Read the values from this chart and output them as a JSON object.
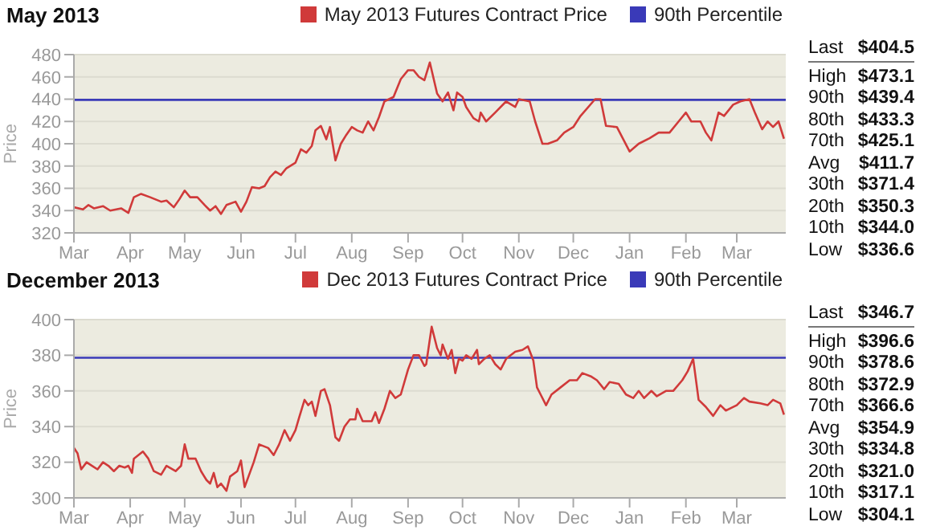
{
  "chart_data": [
    {
      "type": "line",
      "title": "May 2013",
      "ylabel": "Price",
      "legend": "top right",
      "grid": "y",
      "marker": "none",
      "line_style": "solid",
      "xlim": [
        "2012-03-01",
        "2013-03-28"
      ],
      "ylim": [
        320,
        480
      ],
      "yticks": [
        320,
        340,
        360,
        380,
        400,
        420,
        440,
        460,
        480
      ],
      "xticks": [
        {
          "value": "2012-03-01",
          "label": "Mar"
        },
        {
          "value": "2012-04-01",
          "label": "Apr"
        },
        {
          "value": "2012-05-01",
          "label": "May"
        },
        {
          "value": "2012-06-01",
          "label": "Jun"
        },
        {
          "value": "2012-07-01",
          "label": "Jul"
        },
        {
          "value": "2012-08-01",
          "label": "Aug"
        },
        {
          "value": "2012-09-01",
          "label": "Sep"
        },
        {
          "value": "2012-10-01",
          "label": "Oct"
        },
        {
          "value": "2012-11-01",
          "label": "Nov"
        },
        {
          "value": "2012-12-01",
          "label": "Dec"
        },
        {
          "value": "2013-01-01",
          "label": "Jan"
        },
        {
          "value": "2013-02-01",
          "label": "Feb"
        },
        {
          "value": "2013-03-01",
          "label": "Mar"
        }
      ],
      "series": [
        {
          "name": "May 2013 Futures Contract Price",
          "color": "#d03a3a",
          "x": [
            "2012-03-01",
            "2012-03-06",
            "2012-03-09",
            "2012-03-12",
            "2012-03-17",
            "2012-03-21",
            "2012-03-27",
            "2012-03-31",
            "2012-04-03",
            "2012-04-07",
            "2012-04-12",
            "2012-04-18",
            "2012-04-21",
            "2012-04-25",
            "2012-04-28",
            "2012-05-01",
            "2012-05-04",
            "2012-05-08",
            "2012-05-12",
            "2012-05-15",
            "2012-05-18",
            "2012-05-21",
            "2012-05-24",
            "2012-05-29",
            "2012-06-01",
            "2012-06-04",
            "2012-06-07",
            "2012-06-11",
            "2012-06-14",
            "2012-06-17",
            "2012-06-20",
            "2012-06-23",
            "2012-06-26",
            "2012-07-01",
            "2012-07-04",
            "2012-07-07",
            "2012-07-10",
            "2012-07-12",
            "2012-07-15",
            "2012-07-18",
            "2012-07-20",
            "2012-07-23",
            "2012-07-26",
            "2012-07-29",
            "2012-08-01",
            "2012-08-04",
            "2012-08-07",
            "2012-08-10",
            "2012-08-13",
            "2012-08-16",
            "2012-08-19",
            "2012-08-24",
            "2012-08-28",
            "2012-09-01",
            "2012-09-04",
            "2012-09-07",
            "2012-09-10",
            "2012-09-13",
            "2012-09-17",
            "2012-09-20",
            "2012-09-23",
            "2012-09-26",
            "2012-09-28",
            "2012-10-01",
            "2012-10-03",
            "2012-10-07",
            "2012-10-10",
            "2012-10-11",
            "2012-10-14",
            "2012-10-19",
            "2012-10-25",
            "2012-10-30",
            "2012-11-01",
            "2012-11-07",
            "2012-11-10",
            "2012-11-14",
            "2012-11-17",
            "2012-11-22",
            "2012-11-26",
            "2012-12-01",
            "2012-12-05",
            "2012-12-13",
            "2012-12-16",
            "2012-12-19",
            "2012-12-25",
            "2013-01-01",
            "2013-01-06",
            "2013-01-12",
            "2013-01-17",
            "2013-01-23",
            "2013-01-28",
            "2013-02-01",
            "2013-02-04",
            "2013-02-09",
            "2013-02-12",
            "2013-02-15",
            "2013-02-19",
            "2013-02-22",
            "2013-02-27",
            "2013-03-03",
            "2013-03-08",
            "2013-03-11",
            "2013-03-15",
            "2013-03-18",
            "2013-03-21",
            "2013-03-24",
            "2013-03-27"
          ],
          "values": [
            343,
            341,
            345,
            342,
            344,
            340,
            342,
            338,
            352,
            355,
            352,
            348,
            349,
            343,
            350,
            358,
            352,
            352,
            345,
            340,
            344,
            337,
            345,
            348,
            339,
            348,
            361,
            360,
            362,
            370,
            375,
            372,
            378,
            383,
            395,
            392,
            398,
            412,
            416,
            404,
            415,
            385,
            400,
            408,
            415,
            412,
            410,
            420,
            412,
            424,
            438,
            442,
            458,
            466,
            466,
            460,
            457,
            473,
            445,
            438,
            446,
            430,
            446,
            442,
            433,
            423,
            420,
            428,
            420,
            428,
            438,
            433,
            440,
            438,
            420,
            400,
            400,
            403,
            410,
            415,
            425,
            440,
            440,
            416,
            415,
            393,
            400,
            405,
            410,
            410,
            420,
            428,
            420,
            420,
            410,
            403,
            428,
            425,
            435,
            438,
            440,
            428,
            413,
            420,
            415,
            420,
            404.5
          ]
        }
      ],
      "ref_lines": [
        {
          "axis": "y",
          "value": 439.4,
          "label": "90th Percentile",
          "color": "#3a3ab8"
        }
      ],
      "annotations": [
        "Last",
        "$404.5",
        "High",
        "$473.1",
        "90th",
        "$439.4",
        "80th",
        "$433.3",
        "70th",
        "$425.1",
        "Avg",
        "$411.7",
        "30th",
        "$371.4",
        "20th",
        "$350.3",
        "10th",
        "$344.0",
        "Low",
        "$336.6"
      ]
    },
    {
      "type": "line",
      "title": "December 2013",
      "ylabel": "Price",
      "legend": "top right",
      "grid": "y",
      "marker": "none",
      "line_style": "solid",
      "xlim": [
        "2012-03-01",
        "2013-03-28"
      ],
      "ylim": [
        300,
        400
      ],
      "yticks": [
        300,
        320,
        340,
        360,
        380,
        400
      ],
      "xticks": [
        {
          "value": "2012-03-01",
          "label": "Mar"
        },
        {
          "value": "2012-04-01",
          "label": "Apr"
        },
        {
          "value": "2012-05-01",
          "label": "May"
        },
        {
          "value": "2012-06-01",
          "label": "Jun"
        },
        {
          "value": "2012-07-01",
          "label": "Jul"
        },
        {
          "value": "2012-08-01",
          "label": "Aug"
        },
        {
          "value": "2012-09-01",
          "label": "Sep"
        },
        {
          "value": "2012-10-01",
          "label": "Oct"
        },
        {
          "value": "2012-11-01",
          "label": "Nov"
        },
        {
          "value": "2012-12-01",
          "label": "Dec"
        },
        {
          "value": "2013-01-01",
          "label": "Jan"
        },
        {
          "value": "2013-02-01",
          "label": "Feb"
        },
        {
          "value": "2013-03-01",
          "label": "Mar"
        }
      ],
      "series": [
        {
          "name": "Dec 2013 Futures Contract Price",
          "color": "#d03a3a",
          "x": [
            "2012-03-01",
            "2012-03-03",
            "2012-03-05",
            "2012-03-08",
            "2012-03-11",
            "2012-03-14",
            "2012-03-17",
            "2012-03-20",
            "2012-03-23",
            "2012-03-26",
            "2012-03-29",
            "2012-03-31",
            "2012-04-02",
            "2012-04-03",
            "2012-04-08",
            "2012-04-11",
            "2012-04-14",
            "2012-04-18",
            "2012-04-21",
            "2012-04-26",
            "2012-04-29",
            "2012-05-01",
            "2012-05-03",
            "2012-05-07",
            "2012-05-10",
            "2012-05-13",
            "2012-05-15",
            "2012-05-17",
            "2012-05-19",
            "2012-05-21",
            "2012-05-24",
            "2012-05-26",
            "2012-05-30",
            "2012-06-01",
            "2012-06-03",
            "2012-06-08",
            "2012-06-11",
            "2012-06-16",
            "2012-06-19",
            "2012-06-22",
            "2012-06-25",
            "2012-06-28",
            "2012-07-01",
            "2012-07-03",
            "2012-07-06",
            "2012-07-08",
            "2012-07-10",
            "2012-07-12",
            "2012-07-15",
            "2012-07-17",
            "2012-07-20",
            "2012-07-23",
            "2012-07-25",
            "2012-07-28",
            "2012-07-31",
            "2012-08-03",
            "2012-08-04",
            "2012-08-07",
            "2012-08-12",
            "2012-08-14",
            "2012-08-16",
            "2012-08-19",
            "2012-08-22",
            "2012-08-25",
            "2012-08-28",
            "2012-09-01",
            "2012-09-04",
            "2012-09-07",
            "2012-09-10",
            "2012-09-11",
            "2012-09-14",
            "2012-09-17",
            "2012-09-19",
            "2012-09-20",
            "2012-09-23",
            "2012-09-25",
            "2012-09-27",
            "2012-09-29",
            "2012-10-01",
            "2012-10-03",
            "2012-10-06",
            "2012-10-09",
            "2012-10-10",
            "2012-10-13",
            "2012-10-16",
            "2012-10-19",
            "2012-10-22",
            "2012-10-25",
            "2012-10-30",
            "2012-11-03",
            "2012-11-06",
            "2012-11-09",
            "2012-11-11",
            "2012-11-13",
            "2012-11-16",
            "2012-11-19",
            "2012-11-24",
            "2012-11-29",
            "2012-12-03",
            "2012-12-06",
            "2012-12-11",
            "2012-12-14",
            "2012-12-18",
            "2012-12-21",
            "2012-12-26",
            "2012-12-30",
            "2013-01-03",
            "2013-01-06",
            "2013-01-09",
            "2013-01-13",
            "2013-01-16",
            "2013-01-21",
            "2013-01-25",
            "2013-01-30",
            "2013-02-02",
            "2013-02-05",
            "2013-02-08",
            "2013-02-12",
            "2013-02-16",
            "2013-02-20",
            "2013-02-23",
            "2013-03-01",
            "2013-03-05",
            "2013-03-08",
            "2013-03-14",
            "2013-03-18",
            "2013-03-21",
            "2013-03-25",
            "2013-03-27"
          ],
          "values": [
            328,
            325,
            316,
            320,
            318,
            316,
            320,
            318,
            315,
            318,
            317,
            318,
            314,
            322,
            326,
            322,
            315,
            313,
            318,
            315,
            318,
            330,
            322,
            322,
            315,
            310,
            308,
            314,
            306,
            308,
            304,
            312,
            315,
            321,
            306,
            320,
            330,
            328,
            324,
            330,
            338,
            332,
            338,
            345,
            355,
            352,
            354,
            346,
            360,
            361,
            352,
            334,
            332,
            340,
            344,
            344,
            350,
            343,
            343,
            348,
            342,
            350,
            360,
            356,
            358,
            372,
            380,
            380,
            374,
            375,
            396,
            384,
            380,
            386,
            378,
            383,
            370,
            378,
            377,
            380,
            378,
            383,
            375,
            378,
            380,
            375,
            372,
            378,
            382,
            383,
            385,
            377,
            362,
            358,
            352,
            358,
            362,
            366,
            366,
            370,
            368,
            366,
            361,
            365,
            364,
            358,
            356,
            360,
            356,
            360,
            357,
            360,
            360,
            366,
            371,
            378,
            355,
            351,
            346,
            352,
            349,
            352,
            356,
            354,
            353,
            352,
            355,
            353,
            346.7
          ]
        }
      ],
      "ref_lines": [
        {
          "axis": "y",
          "value": 378.6,
          "label": "90th Percentile",
          "color": "#3a3ab8"
        }
      ],
      "annotations": [
        "Last",
        "$346.7",
        "High",
        "$396.6",
        "90th",
        "$378.6",
        "80th",
        "$372.9",
        "70th",
        "$366.6",
        "Avg",
        "$354.9",
        "30th",
        "$334.8",
        "20th",
        "$321.0",
        "10th",
        "$317.1",
        "Low",
        "$304.1"
      ]
    }
  ]
}
